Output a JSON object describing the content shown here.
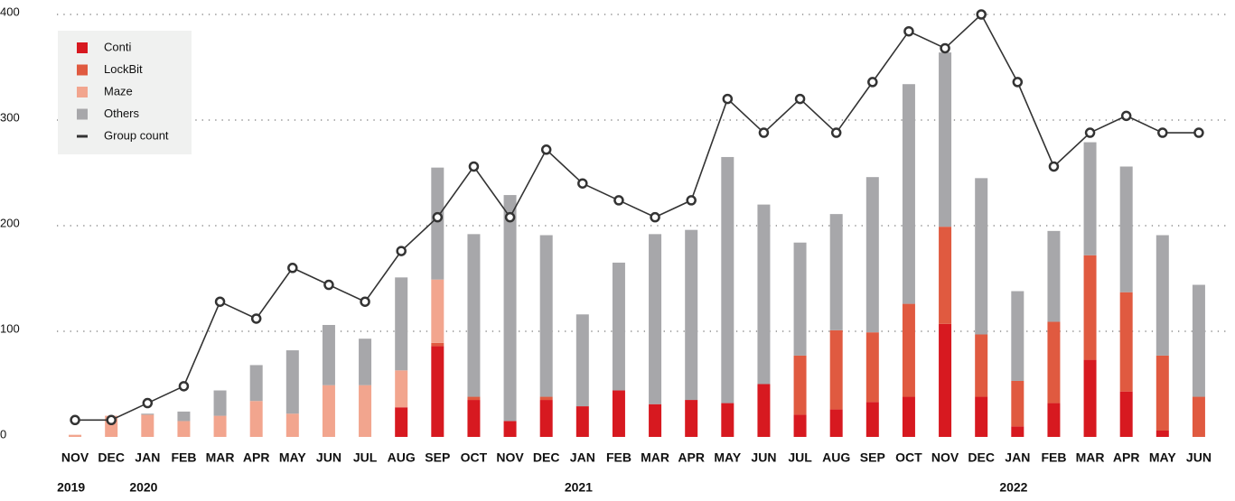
{
  "chart_data": {
    "type": "stacked_bar_line",
    "categories": [
      "NOV",
      "DEC",
      "JAN",
      "FEB",
      "MAR",
      "APR",
      "MAY",
      "JUN",
      "JUL",
      "AUG",
      "SEP",
      "OCT",
      "NOV",
      "DEC",
      "JAN",
      "FEB",
      "MAR",
      "APR",
      "MAY",
      "JUN",
      "JUL",
      "AUG",
      "SEP",
      "OCT",
      "NOV",
      "DEC",
      "JAN",
      "FEB",
      "MAR",
      "APR",
      "MAY",
      "JUN"
    ],
    "year_labels": [
      "2019",
      null,
      "2020",
      null,
      null,
      null,
      null,
      null,
      null,
      null,
      null,
      null,
      null,
      null,
      "2021",
      null,
      null,
      null,
      null,
      null,
      null,
      null,
      null,
      null,
      null,
      null,
      "2022",
      null,
      null,
      null,
      null,
      null
    ],
    "series": [
      {
        "name": "Conti",
        "color": "#d71920",
        "values": [
          0,
          0,
          0,
          0,
          0,
          0,
          0,
          0,
          0,
          28,
          86,
          35,
          15,
          35,
          29,
          44,
          31,
          35,
          32,
          50,
          21,
          26,
          33,
          38,
          107,
          38,
          10,
          32,
          73,
          43,
          6,
          0
        ]
      },
      {
        "name": "LockBit",
        "color": "#e05a40",
        "values": [
          0,
          0,
          0,
          0,
          0,
          0,
          0,
          0,
          0,
          0,
          3,
          3,
          0,
          3,
          0,
          0,
          0,
          0,
          0,
          0,
          56,
          75,
          66,
          88,
          92,
          59,
          43,
          77,
          99,
          94,
          71,
          38
        ]
      },
      {
        "name": "Maze",
        "color": "#f2a58e",
        "values": [
          2,
          20,
          21,
          15,
          20,
          34,
          22,
          49,
          49,
          35,
          60,
          0,
          0,
          0,
          0,
          0,
          0,
          0,
          0,
          0,
          0,
          0,
          0,
          0,
          0,
          0,
          0,
          0,
          0,
          0,
          0,
          0
        ]
      },
      {
        "name": "Others",
        "color": "#a7a7aa",
        "values": [
          0,
          0,
          1,
          9,
          24,
          34,
          60,
          57,
          44,
          88,
          106,
          154,
          214,
          153,
          87,
          121,
          161,
          161,
          233,
          170,
          107,
          110,
          147,
          208,
          165,
          148,
          85,
          86,
          107,
          119,
          114,
          106
        ]
      }
    ],
    "line": {
      "name": "Group count",
      "color": "#333333",
      "values": [
        16,
        16,
        32,
        48,
        128,
        112,
        160,
        144,
        128,
        176,
        208,
        256,
        208,
        272,
        240,
        224,
        208,
        224,
        320,
        288,
        320,
        288,
        336,
        384,
        368,
        400,
        336,
        256,
        288,
        304,
        288,
        288
      ]
    },
    "ylim": [
      0,
      400
    ],
    "yticks": [
      0,
      100,
      200,
      300,
      400
    ],
    "grid": true,
    "legend": "top-left"
  }
}
